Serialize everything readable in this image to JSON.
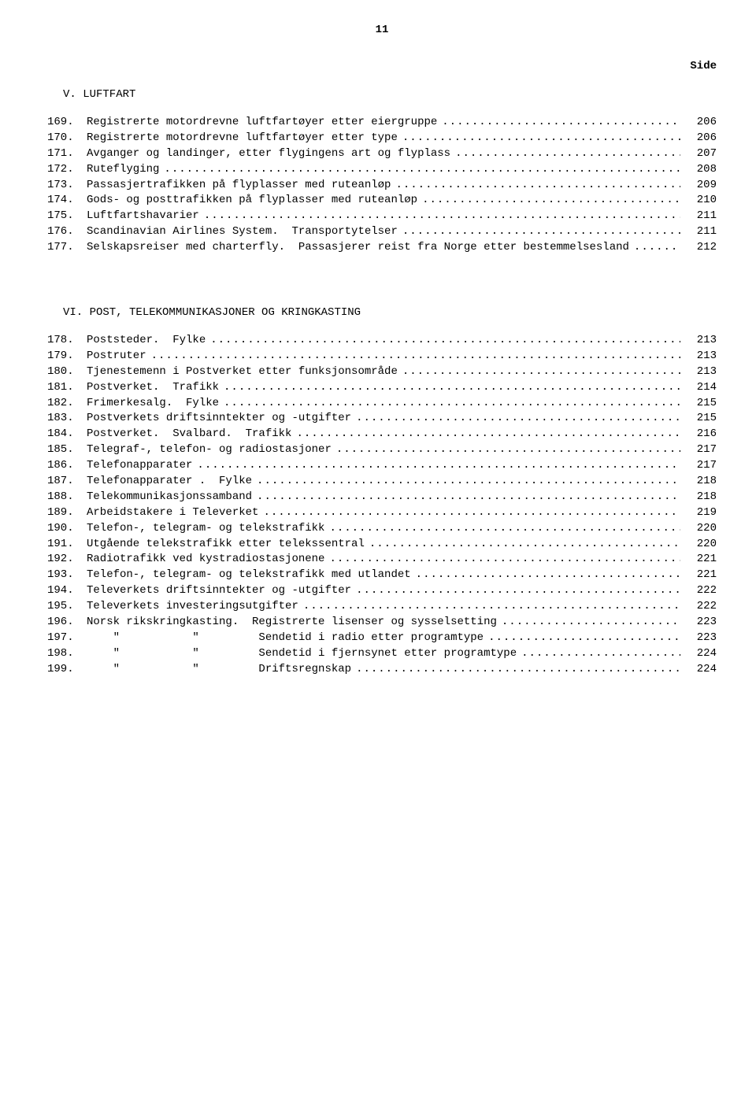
{
  "page_number": "11",
  "side_label": "Side",
  "sections": [
    {
      "heading": "V.  LUFTFART",
      "entries": [
        {
          "num": "169.",
          "title": "Registrerte motordrevne luftfartøyer etter eiergruppe",
          "page": "206"
        },
        {
          "num": "170.",
          "title": "Registrerte motordrevne luftfartøyer etter type",
          "page": "206"
        },
        {
          "num": "171.",
          "title": "Avganger og landinger, etter flygingens art og flyplass",
          "page": "207"
        },
        {
          "num": "172.",
          "title": "Ruteflyging",
          "page": "208"
        },
        {
          "num": "173.",
          "title": "Passasjertrafikken på flyplasser med ruteanløp",
          "page": "209"
        },
        {
          "num": "174.",
          "title": "Gods- og posttrafikken på flyplasser med ruteanløp",
          "page": "210"
        },
        {
          "num": "175.",
          "title": "Luftfartshavarier",
          "page": "211"
        },
        {
          "num": "176.",
          "title": "Scandinavian Airlines System.  Transportytelser",
          "page": "211"
        },
        {
          "num": "177.",
          "title": "Selskapsreiser med charterfly.  Passasjerer reist fra Norge etter bestemmelsesland",
          "page": "212"
        }
      ]
    },
    {
      "heading": "VI.  POST, TELEKOMMUNIKASJONER OG KRINGKASTING",
      "entries": [
        {
          "num": "178.",
          "title": "Poststeder.  Fylke",
          "page": "213"
        },
        {
          "num": "179.",
          "title": "Postruter",
          "page": "213"
        },
        {
          "num": "180.",
          "title": "Tjenestemenn i Postverket etter funksjonsområde",
          "page": "213"
        },
        {
          "num": "181.",
          "title": "Postverket.  Trafikk",
          "page": "214"
        },
        {
          "num": "182.",
          "title": "Frimerkesalg.  Fylke",
          "page": "215"
        },
        {
          "num": "183.",
          "title": "Postverkets driftsinntekter og -utgifter",
          "page": "215"
        },
        {
          "num": "184.",
          "title": "Postverket.  Svalbard.  Trafikk",
          "page": "216"
        },
        {
          "num": "185.",
          "title": "Telegraf-, telefon- og radiostasjoner",
          "page": "217"
        },
        {
          "num": "186.",
          "title": "Telefonapparater",
          "page": "217"
        },
        {
          "num": "187.",
          "title": "Telefonapparater .  Fylke",
          "page": "218"
        },
        {
          "num": "188.",
          "title": "Telekommunikasjonssamband",
          "page": "218"
        },
        {
          "num": "189.",
          "title": "Arbeidstakere i Televerket",
          "page": "219"
        },
        {
          "num": "190.",
          "title": "Telefon-, telegram- og telekstrafikk",
          "page": "220"
        },
        {
          "num": "191.",
          "title": "Utgående telekstrafikk etter telekssentral",
          "page": "220"
        },
        {
          "num": "192.",
          "title": "Radiotrafikk ved kystradiostasjonene",
          "page": "221"
        },
        {
          "num": "193.",
          "title": "Telefon-, telegram- og telekstrafikk med utlandet",
          "page": "221"
        },
        {
          "num": "194.",
          "title": "Televerkets driftsinntekter og -utgifter",
          "page": "222"
        },
        {
          "num": "195.",
          "title": "Televerkets investeringsutgifter",
          "page": "222"
        },
        {
          "num": "196.",
          "title": "Norsk rikskringkasting.  Registrerte lisenser og sysselsetting",
          "page": "223"
        },
        {
          "num": "197.",
          "title": "    \"           \"         Sendetid i radio etter programtype",
          "page": "223"
        },
        {
          "num": "198.",
          "title": "    \"           \"         Sendetid i fjernsynet etter programtype",
          "page": "224"
        },
        {
          "num": "199.",
          "title": "    \"           \"         Driftsregnskap",
          "page": "224"
        }
      ]
    }
  ],
  "dot_leader": "........................................................................................................................"
}
